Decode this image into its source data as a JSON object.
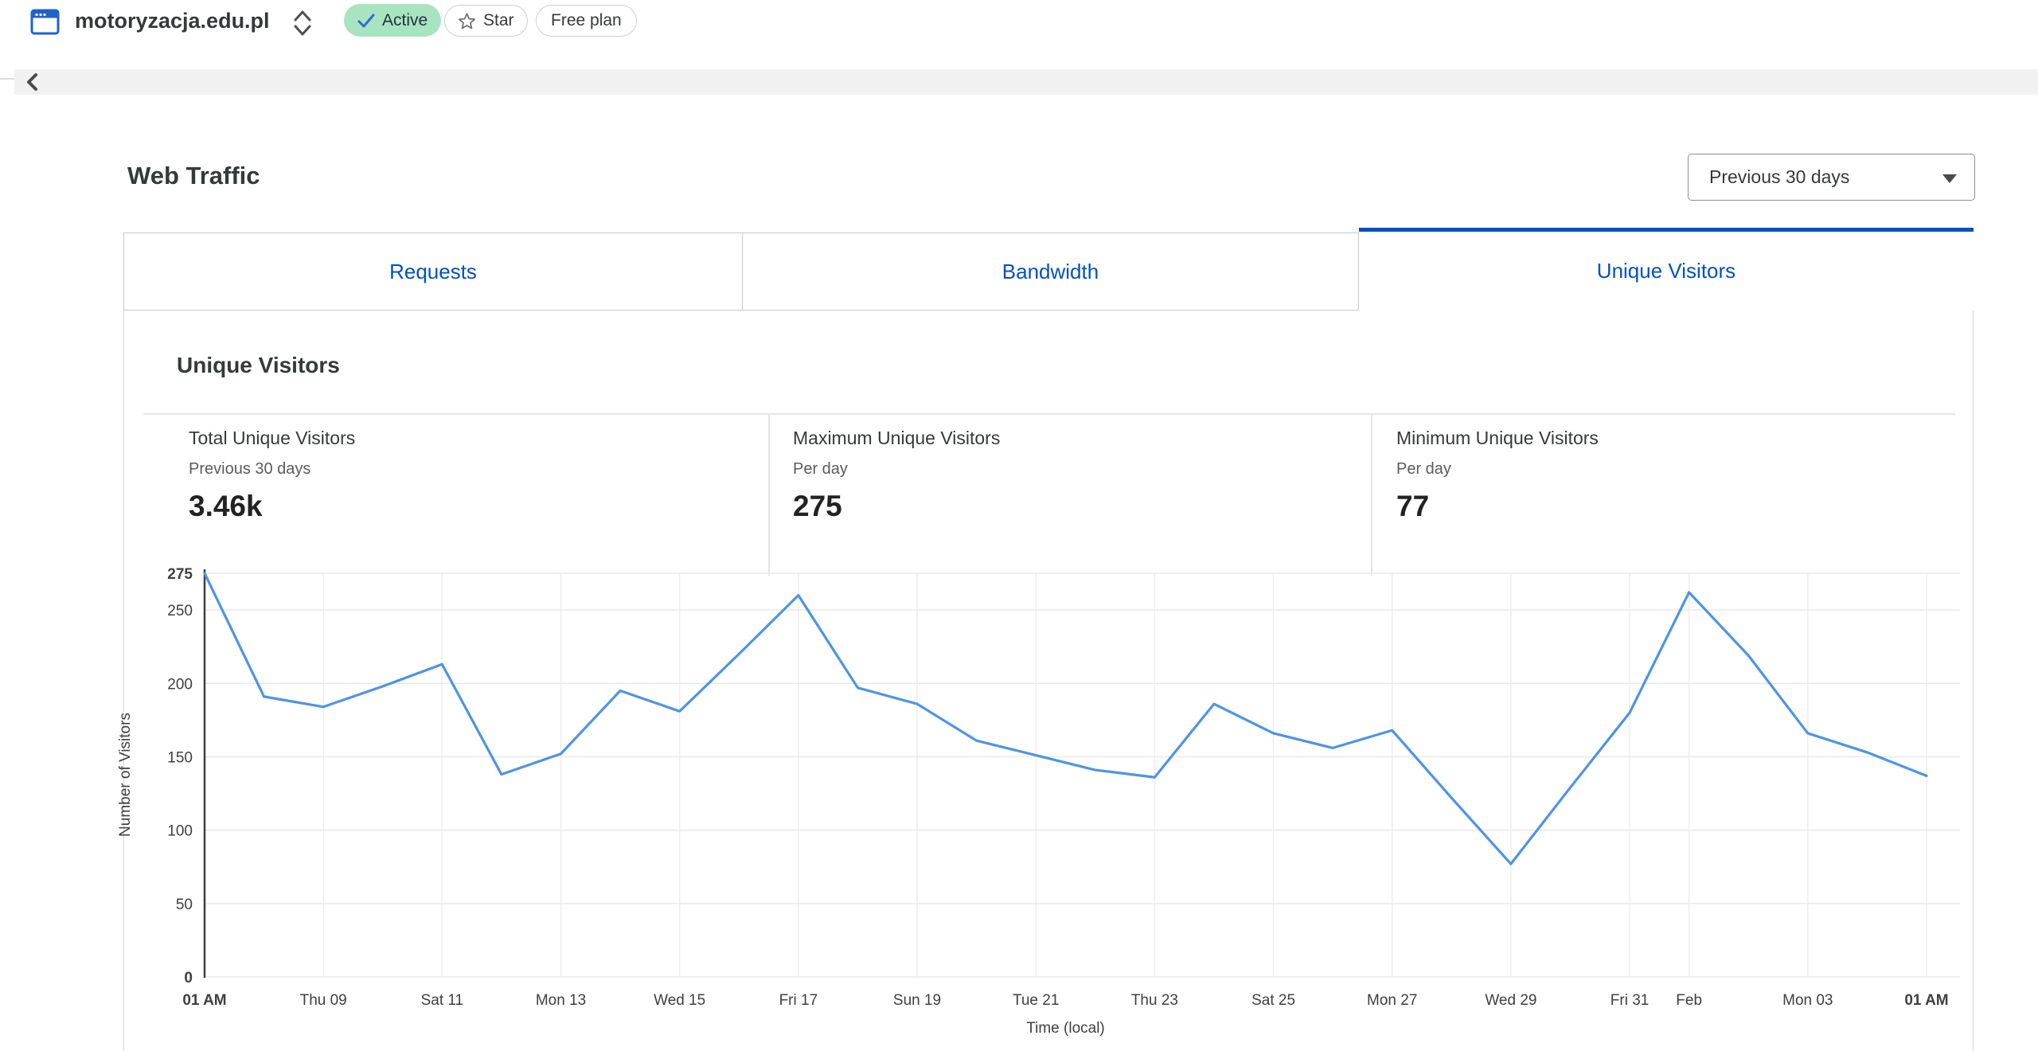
{
  "header": {
    "domain": "motoryzacja.edu.pl",
    "status_badge": {
      "label": "Active"
    },
    "star_button": {
      "label": "Star"
    },
    "plan_badge": {
      "label": "Free plan"
    }
  },
  "traffic": {
    "title": "Web Traffic",
    "range_dropdown": {
      "value": "Previous 30 days"
    },
    "tabs": [
      {
        "label": "Requests",
        "active": false
      },
      {
        "label": "Bandwidth",
        "active": false
      },
      {
        "label": "Unique Visitors",
        "active": true
      }
    ],
    "section_title": "Unique Visitors",
    "stats": [
      {
        "label": "Total Unique Visitors",
        "sublabel": "Previous 30 days",
        "value": "3.46k"
      },
      {
        "label": "Maximum Unique Visitors",
        "sublabel": "Per day",
        "value": "275"
      },
      {
        "label": "Minimum Unique Visitors",
        "sublabel": "Per day",
        "value": "77"
      }
    ]
  },
  "chart_data": {
    "type": "line",
    "title": "Unique Visitors",
    "ylabel": "Number of Visitors",
    "xlabel": "Time (local)",
    "ylim": [
      0,
      275
    ],
    "yticks": [
      0,
      50,
      100,
      150,
      200,
      250,
      275
    ],
    "bold_yticks": [
      0,
      275
    ],
    "grid": true,
    "legend": "none",
    "line_color": "#4e93e8",
    "series": [
      {
        "name": "Unique Visitors",
        "values": [
          275,
          191,
          184,
          198,
          213,
          138,
          152,
          195,
          181,
          220,
          260,
          197,
          186,
          161,
          151,
          141,
          136,
          186,
          166,
          156,
          168,
          122,
          77,
          129,
          180,
          262,
          219,
          166,
          153,
          137
        ]
      }
    ],
    "x_tick_labels": [
      {
        "index": 0,
        "label": "01 AM",
        "bold": true
      },
      {
        "index": 2,
        "label": "Thu 09"
      },
      {
        "index": 4,
        "label": "Sat 11"
      },
      {
        "index": 6,
        "label": "Mon 13"
      },
      {
        "index": 8,
        "label": "Wed 15"
      },
      {
        "index": 10,
        "label": "Fri 17"
      },
      {
        "index": 12,
        "label": "Sun 19"
      },
      {
        "index": 14,
        "label": "Tue 21"
      },
      {
        "index": 16,
        "label": "Thu 23"
      },
      {
        "index": 18,
        "label": "Sat 25"
      },
      {
        "index": 20,
        "label": "Mon 27"
      },
      {
        "index": 22,
        "label": "Wed 29"
      },
      {
        "index": 24,
        "label": "Fri 31"
      },
      {
        "index": 25,
        "label": "Feb"
      },
      {
        "index": 27,
        "label": "Mon 03"
      },
      {
        "index": 29,
        "label": "01 AM",
        "bold": true
      }
    ]
  },
  "colors": {
    "accent_blue": "#0051c3",
    "line_blue": "#4e93e8",
    "active_badge_bg": "#a9e4c1",
    "check_blue": "#2e6bd6",
    "grid": "#e9e9e9",
    "axis": "#3f3f3f"
  }
}
